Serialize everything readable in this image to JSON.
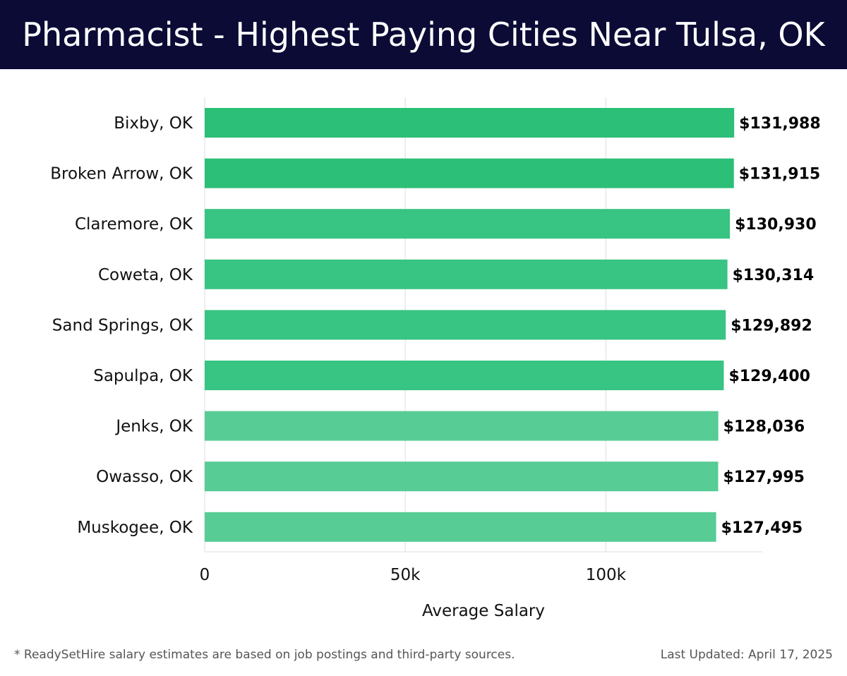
{
  "title": "Pharmacist - Highest Paying Cities Near Tulsa, OK",
  "footer": {
    "note": "* ReadySetHire salary estimates are based on job postings and third-party sources.",
    "updated": "Last Updated: April 17, 2025"
  },
  "colors": {
    "header_bg": "#0b0b36",
    "bar_dark": "#2bbf78",
    "bar_mid": "#38c482",
    "bar_light": "#57cc95",
    "grid": "#dddddd",
    "label": "#111111"
  },
  "chart_data": {
    "type": "bar",
    "orientation": "horizontal",
    "categories": [
      "Bixby, OK",
      "Broken Arrow, OK",
      "Claremore, OK",
      "Coweta, OK",
      "Sand Springs, OK",
      "Sapulpa, OK",
      "Jenks, OK",
      "Owasso, OK",
      "Muskogee, OK"
    ],
    "values": [
      131988,
      131915,
      130930,
      130314,
      129892,
      129400,
      128036,
      127995,
      127495
    ],
    "value_labels": [
      "$131,988",
      "$131,915",
      "$130,930",
      "$130,314",
      "$129,892",
      "$129,400",
      "$128,036",
      "$127,995",
      "$127,495"
    ],
    "xlabel": "Average Salary",
    "ylabel": "",
    "xlim": [
      0,
      139000
    ],
    "xticks": [
      0,
      50000,
      100000
    ],
    "xtick_labels": [
      "0",
      "50k",
      "100k"
    ],
    "grid": true
  }
}
